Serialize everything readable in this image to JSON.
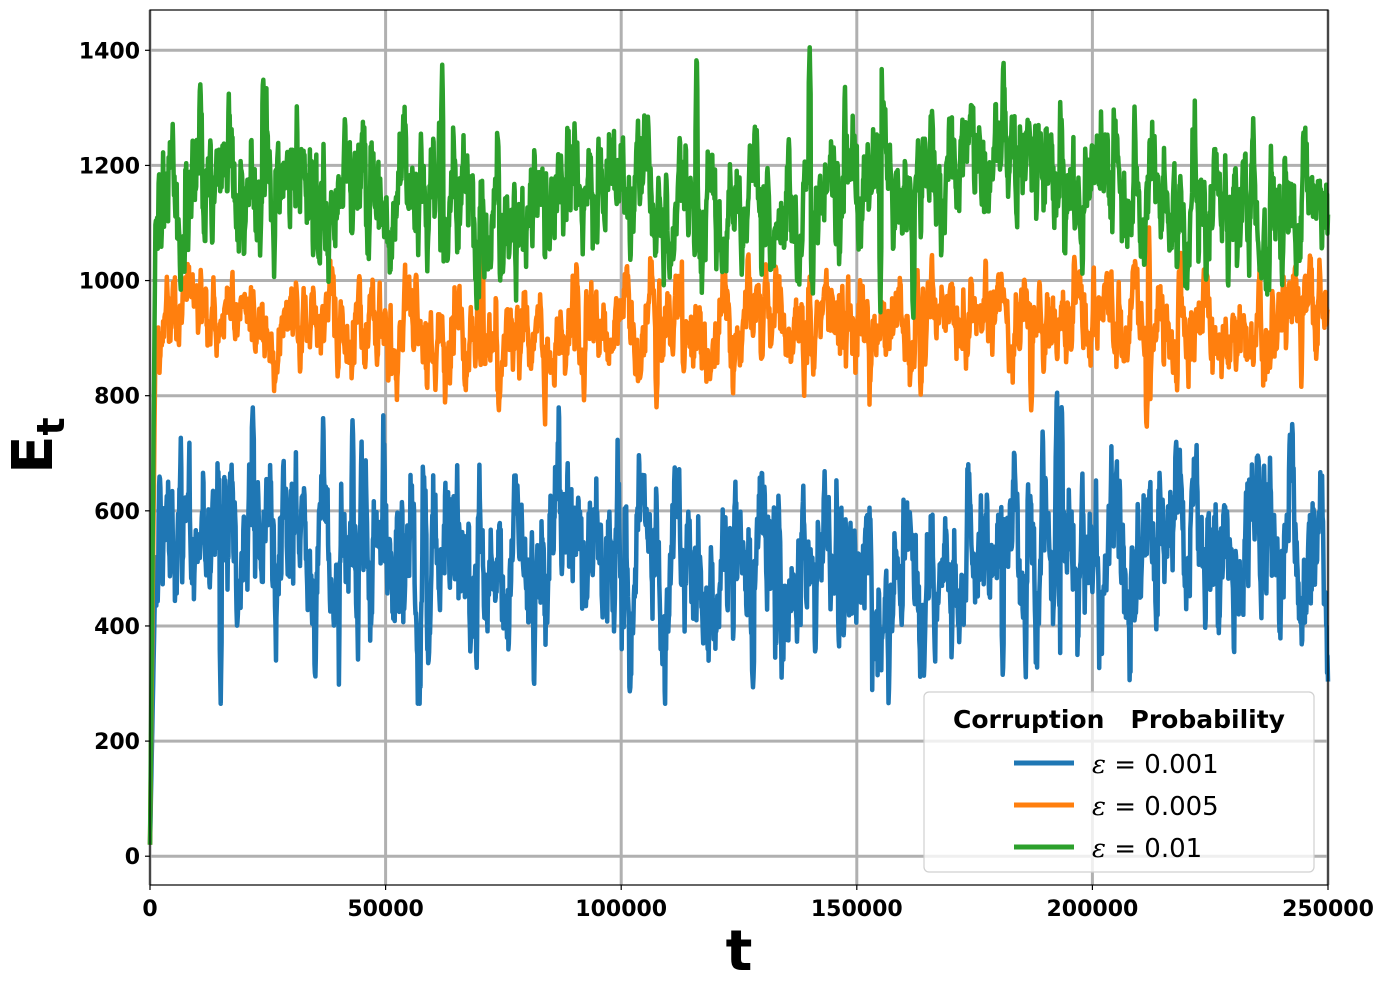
{
  "chart_data": {
    "type": "line",
    "xlabel": "t",
    "ylabel": "E",
    "ylabel_subscript": "t",
    "xlim": [
      0,
      250000
    ],
    "ylim": [
      -50,
      1470
    ],
    "x_ticks": [
      0,
      50000,
      100000,
      150000,
      200000,
      250000
    ],
    "x_tick_labels": [
      "0",
      "50000",
      "100000",
      "150000",
      "200000",
      "250000"
    ],
    "y_ticks": [
      0,
      200,
      400,
      600,
      800,
      1000,
      1200,
      1400
    ],
    "y_tick_labels": [
      "0",
      "200",
      "400",
      "600",
      "800",
      "1000",
      "1200",
      "1400"
    ],
    "grid": true,
    "legend": {
      "title": "Corruption   Probability",
      "placement": "lower-right",
      "entries": [
        {
          "symbol": "ε",
          "eq": " = ",
          "value": "0.001"
        },
        {
          "symbol": "ε",
          "eq": " = ",
          "value": "0.005"
        },
        {
          "symbol": "ε",
          "eq": " = ",
          "value": "0.01"
        }
      ]
    },
    "series": [
      {
        "name": "ε = 0.001",
        "color": "#1f77b4",
        "start": 20,
        "mean": 520,
        "std": 80,
        "min": 265,
        "max": 805,
        "notable": [
          [
            21800,
            790
          ],
          [
            43000,
            765
          ],
          [
            15000,
            265
          ],
          [
            128000,
            290
          ],
          [
            193500,
            805
          ],
          [
            181000,
            300
          ],
          [
            68000,
            350
          ]
        ]
      },
      {
        "name": "ε = 0.005",
        "color": "#ff7f0e",
        "start": 20,
        "mean": 925,
        "std": 45,
        "min": 735,
        "max": 1100,
        "notable": [
          [
            211500,
            735
          ],
          [
            107500,
            780
          ],
          [
            187000,
            770
          ],
          [
            70500,
            1090
          ],
          [
            212000,
            1100
          ]
        ]
      },
      {
        "name": "ε = 0.01",
        "color": "#2ca02c",
        "start": 20,
        "mean": 1140,
        "std": 65,
        "min": 930,
        "max": 1405,
        "notable": [
          [
            140000,
            1405
          ],
          [
            62000,
            1385
          ],
          [
            24000,
            1365
          ],
          [
            116000,
            1400
          ],
          [
            155000,
            945
          ],
          [
            162000,
            930
          ]
        ]
      }
    ]
  }
}
